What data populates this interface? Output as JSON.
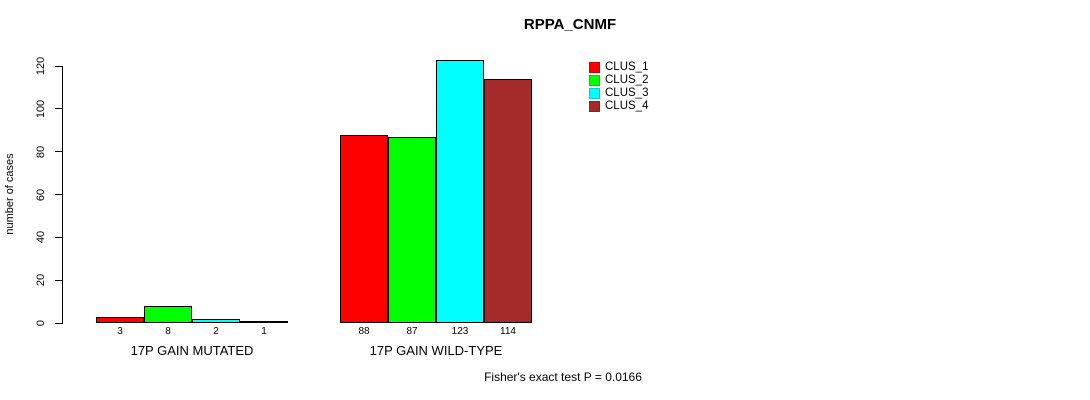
{
  "chart_data": {
    "type": "bar",
    "title": "RPPA_CNMF",
    "ylabel": "number of cases",
    "ylim": [
      0,
      120
    ],
    "yticks": [
      0,
      20,
      40,
      60,
      80,
      100,
      120
    ],
    "categories": [
      "17P GAIN MUTATED",
      "17P GAIN WILD-TYPE"
    ],
    "series": [
      {
        "name": "CLUS_1",
        "color": "#FF0000",
        "values": [
          3,
          88
        ]
      },
      {
        "name": "CLUS_2",
        "color": "#00FF00",
        "values": [
          8,
          87
        ]
      },
      {
        "name": "CLUS_3",
        "color": "#00FFFF",
        "values": [
          2,
          123
        ]
      },
      {
        "name": "CLUS_4",
        "color": "#A52A2A",
        "values": [
          1,
          114
        ]
      }
    ],
    "bar_value_labels": [
      [
        "3",
        "8",
        "2",
        "1"
      ],
      [
        "88",
        "87",
        "123",
        "114"
      ]
    ],
    "legend_position": "top-right",
    "grid": false,
    "footer": "Fisher's exact test P = 0.0166"
  }
}
